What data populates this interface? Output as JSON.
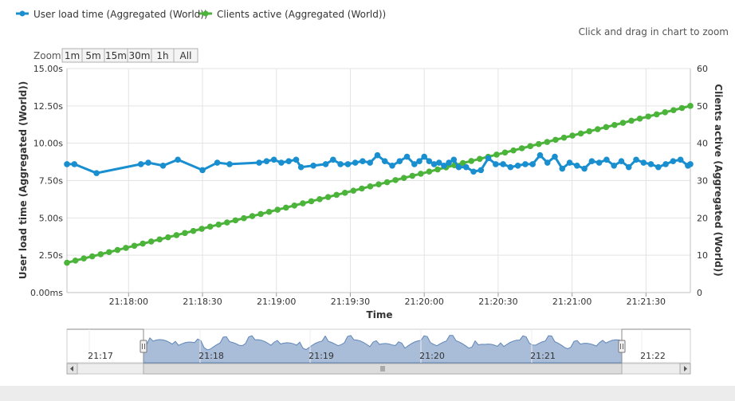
{
  "legend": {
    "items": [
      {
        "label": "User load time (Aggregated (World))",
        "color": "#1a8fcf"
      },
      {
        "label": "Clients active (Aggregated (World))",
        "color": "#4cb33b"
      }
    ]
  },
  "hint": "Click and drag in chart to zoom",
  "zoom": {
    "label": "Zoom",
    "buttons": [
      "1m",
      "5m",
      "15m",
      "30m",
      "1h",
      "All"
    ]
  },
  "chart_data": {
    "type": "line",
    "xlabel": "Time",
    "x_ticks": [
      "21:18:00",
      "21:18:30",
      "21:19:00",
      "21:19:30",
      "21:20:00",
      "21:20:30",
      "21:21:00",
      "21:21:30"
    ],
    "x_range": [
      "21:17:35",
      "21:21:48"
    ],
    "y_left": {
      "label": "User load time (Aggregated (World))",
      "ticks": [
        "0.00ms",
        "2.50s",
        "5.00s",
        "7.50s",
        "10.00s",
        "12.50s",
        "15.00s"
      ],
      "range": [
        0,
        15
      ]
    },
    "y_right": {
      "label": "Clients active (Aggregated (World))",
      "ticks": [
        "0",
        "10",
        "20",
        "30",
        "40",
        "50",
        "60"
      ],
      "range": [
        0,
        60
      ]
    },
    "grid": true,
    "legend_position": "top-left",
    "series": [
      {
        "name": "User load time (Aggregated (World))",
        "axis": "left",
        "color": "#1a8fcf",
        "x": [
          0,
          3,
          12,
          30,
          33,
          39,
          45,
          55,
          61,
          66,
          78,
          81,
          84,
          87,
          90,
          93,
          95,
          100,
          105,
          108,
          111,
          114,
          117,
          120,
          123,
          126,
          129,
          132,
          135,
          138,
          141,
          143,
          145,
          147,
          149,
          151,
          153,
          155,
          157,
          159,
          162,
          165,
          168,
          171,
          174,
          177,
          180,
          183,
          186,
          189,
          192,
          195,
          198,
          201,
          204,
          207,
          210,
          213,
          216,
          219,
          222,
          225,
          228,
          231,
          234,
          237,
          240,
          243,
          246,
          249,
          252,
          253
        ],
        "y": [
          8.6,
          8.6,
          8.0,
          8.6,
          8.7,
          8.5,
          8.9,
          8.2,
          8.7,
          8.6,
          8.7,
          8.8,
          8.9,
          8.7,
          8.8,
          8.9,
          8.4,
          8.5,
          8.6,
          8.9,
          8.6,
          8.6,
          8.7,
          8.8,
          8.7,
          9.2,
          8.8,
          8.5,
          8.8,
          9.1,
          8.6,
          8.8,
          9.1,
          8.8,
          8.6,
          8.7,
          8.5,
          8.7,
          8.9,
          8.4,
          8.4,
          8.1,
          8.2,
          9.0,
          8.6,
          8.6,
          8.4,
          8.5,
          8.6,
          8.6,
          9.2,
          8.7,
          9.1,
          8.3,
          8.7,
          8.5,
          8.3,
          8.8,
          8.7,
          8.9,
          8.5,
          8.8,
          8.4,
          8.9,
          8.7,
          8.6,
          8.4,
          8.6,
          8.8,
          8.9,
          8.5,
          8.6
        ]
      },
      {
        "name": "Clients active (Aggregated (World))",
        "axis": "right",
        "color": "#4cb33b",
        "x": [
          0,
          253
        ],
        "y": [
          8,
          50
        ],
        "points": 75
      }
    ]
  },
  "navigator": {
    "ticks": [
      "21:17",
      "21:18",
      "21:19",
      "21:20",
      "21:21",
      "21:22"
    ]
  }
}
